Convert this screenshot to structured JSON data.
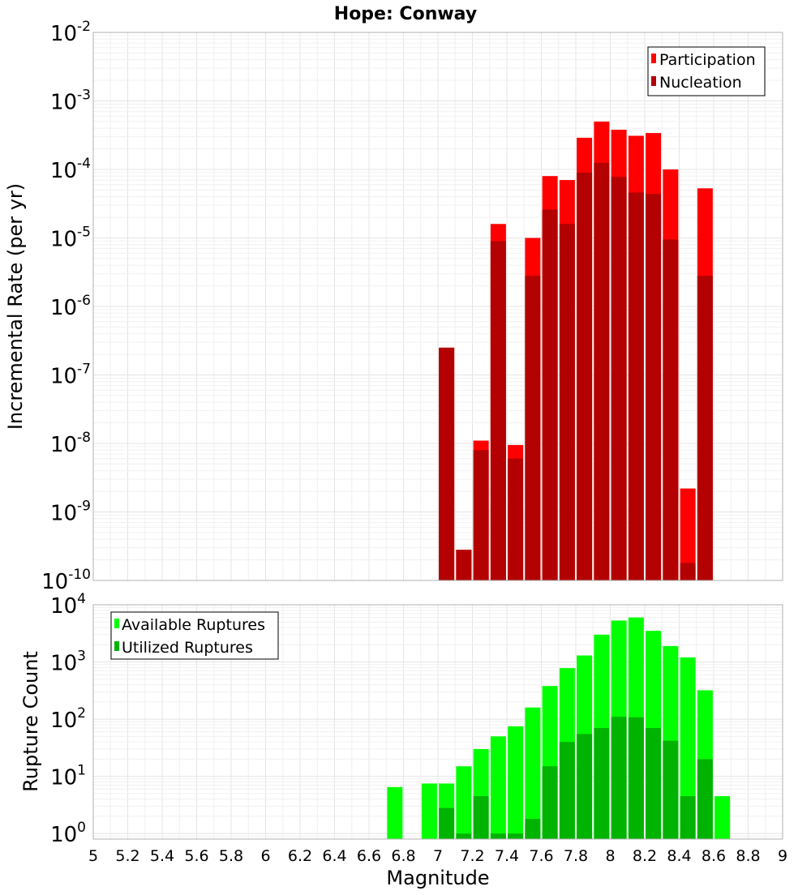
{
  "title": "Hope: Conway",
  "xlabel": "Magnitude",
  "colors": {
    "participation": "#ff0000",
    "nucleation": "#b30000",
    "available": "#00ff00",
    "utilized": "#00b300"
  },
  "chart_data": [
    {
      "type": "bar",
      "title": "Hope: Conway",
      "xlabel": "Magnitude",
      "ylabel": "Incremental Rate (per yr)",
      "yscale": "log",
      "ylim": [
        1e-10,
        0.01
      ],
      "xlim": [
        5,
        9
      ],
      "grid": true,
      "legend": "top-right",
      "x": [
        7.05,
        7.15,
        7.25,
        7.35,
        7.45,
        7.55,
        7.65,
        7.75,
        7.85,
        7.95,
        8.05,
        8.15,
        8.25,
        8.35,
        8.45,
        8.55
      ],
      "series": [
        {
          "name": "Participation",
          "color": "#ff0000",
          "values": [
            2.5e-07,
            2.8e-10,
            1.1e-08,
            1.6e-05,
            9.5e-09,
            1e-05,
            8e-05,
            7e-05,
            0.00029,
            0.0005,
            0.00038,
            0.00031,
            0.00034,
            0.0001,
            2.2e-09,
            5.3e-05
          ]
        },
        {
          "name": "Nucleation",
          "color": "#b30000",
          "values": [
            2.5e-07,
            2.8e-10,
            8e-09,
            9e-06,
            6e-09,
            2.8e-06,
            2.6e-05,
            1.6e-05,
            9e-05,
            0.000125,
            7.8e-05,
            4.6e-05,
            4.4e-05,
            9.5e-06,
            1.8e-10,
            2.8e-06
          ]
        }
      ],
      "y_ticks": [
        {
          "base": "10",
          "exp": "-2"
        },
        {
          "base": "10",
          "exp": "-3"
        },
        {
          "base": "10",
          "exp": "-4"
        },
        {
          "base": "10",
          "exp": "-5"
        },
        {
          "base": "10",
          "exp": "-6"
        },
        {
          "base": "10",
          "exp": "-7"
        },
        {
          "base": "10",
          "exp": "-8"
        },
        {
          "base": "10",
          "exp": "-9"
        },
        {
          "base": "10",
          "exp": "-10"
        }
      ]
    },
    {
      "type": "bar",
      "xlabel": "Magnitude",
      "ylabel": "Rupture Count",
      "yscale": "log",
      "ylim": [
        0.8,
        10000
      ],
      "xlim": [
        5,
        9
      ],
      "grid": true,
      "legend": "top-left",
      "x": [
        6.75,
        6.95,
        7.05,
        7.15,
        7.25,
        7.35,
        7.45,
        7.55,
        7.65,
        7.75,
        7.85,
        7.95,
        8.05,
        8.15,
        8.25,
        8.35,
        8.45,
        8.55,
        8.65
      ],
      "series": [
        {
          "name": "Available Ruptures",
          "color": "#00ff00",
          "values": [
            6.5,
            7.5,
            7.5,
            15,
            30,
            50,
            75,
            160,
            380,
            780,
            1300,
            3000,
            5300,
            6000,
            3500,
            1900,
            1200,
            320,
            4.5
          ]
        },
        {
          "name": "Utilized Ruptures",
          "color": "#00b300",
          "values": [
            0,
            0,
            2.8,
            1,
            4.5,
            1,
            1,
            1.8,
            15,
            40,
            55,
            70,
            110,
            108,
            70,
            42,
            4.5,
            20,
            0
          ]
        }
      ],
      "y_ticks": [
        {
          "base": "10",
          "exp": "4"
        },
        {
          "base": "10",
          "exp": "3"
        },
        {
          "base": "10",
          "exp": "2"
        },
        {
          "base": "10",
          "exp": "1"
        },
        {
          "base": "10",
          "exp": "0"
        }
      ],
      "x_ticks": [
        "5",
        "5.2",
        "5.4",
        "5.6",
        "5.8",
        "6",
        "6.2",
        "6.4",
        "6.6",
        "6.8",
        "7",
        "7.2",
        "7.4",
        "7.6",
        "7.8",
        "8",
        "8.2",
        "8.4",
        "8.6",
        "8.8",
        "9"
      ]
    }
  ]
}
